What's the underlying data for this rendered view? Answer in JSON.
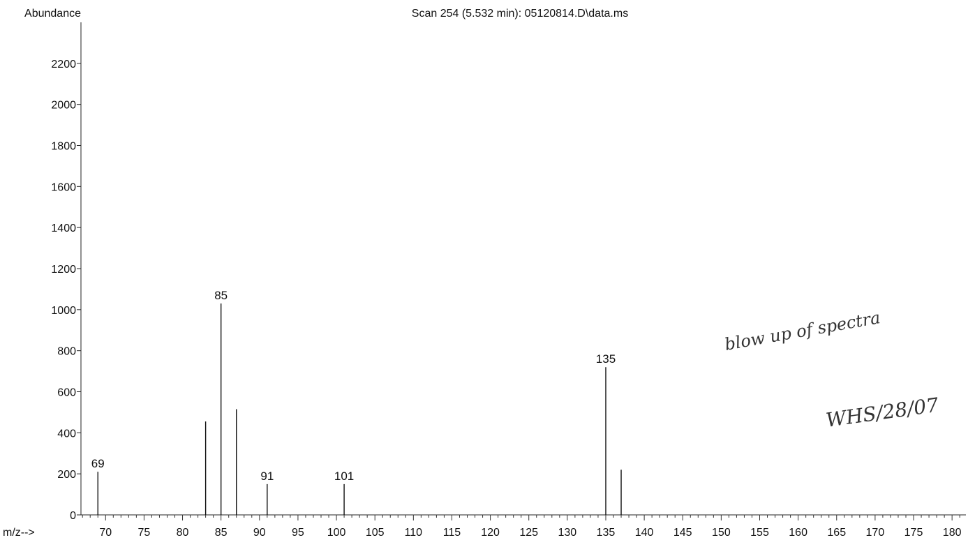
{
  "chart_data": {
    "type": "bar",
    "title": "Scan 254 (5.532 min): 05120814.D\\data.ms",
    "ylabel": "Abundance",
    "xlabel": "m/z-->",
    "xlim": [
      66.8,
      181.8
    ],
    "ylim": [
      0,
      2400
    ],
    "x_ticks": [
      70,
      75,
      80,
      85,
      90,
      95,
      100,
      105,
      110,
      115,
      120,
      125,
      130,
      135,
      140,
      145,
      150,
      155,
      160,
      165,
      170,
      175,
      180
    ],
    "y_ticks": [
      0,
      200,
      400,
      600,
      800,
      1000,
      1200,
      1400,
      1600,
      1800,
      2000,
      2200
    ],
    "grid": false,
    "peaks": [
      {
        "mz": 69,
        "abundance": 210,
        "label": "69"
      },
      {
        "mz": 83,
        "abundance": 455,
        "label": ""
      },
      {
        "mz": 85,
        "abundance": 1030,
        "label": "85"
      },
      {
        "mz": 87,
        "abundance": 515,
        "label": ""
      },
      {
        "mz": 91,
        "abundance": 150,
        "label": "91"
      },
      {
        "mz": 101,
        "abundance": 150,
        "label": "101"
      },
      {
        "mz": 135,
        "abundance": 720,
        "label": "135"
      },
      {
        "mz": 137,
        "abundance": 220,
        "label": ""
      }
    ],
    "annotations": [
      "blow up of spectra",
      "WHS/28/07"
    ]
  }
}
